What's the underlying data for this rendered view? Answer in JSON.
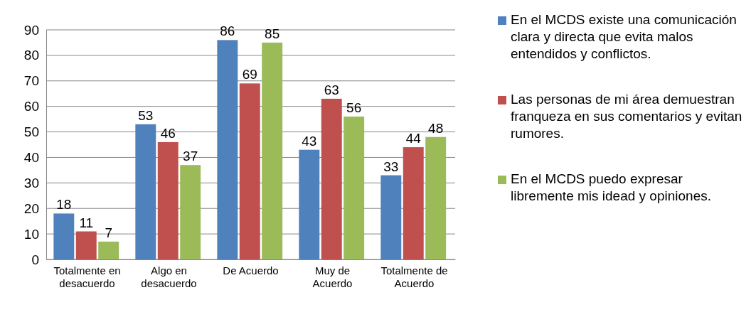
{
  "chart_data": {
    "type": "bar",
    "categories": [
      "Totalmente en desacuerdo",
      "Algo en desacuerdo",
      "De Acuerdo",
      "Muy de Acuerdo",
      "Totalmente de Acuerdo"
    ],
    "series": [
      {
        "name": "En el MCDS existe una comunicación clara y directa que evita malos entendidos y conflictos.",
        "color": "#4f81bd",
        "values": [
          18,
          53,
          86,
          43,
          33
        ]
      },
      {
        "name": "Las personas de mi área demuestran franqueza en sus comentarios y evitan rumores.",
        "color": "#c0504d",
        "values": [
          11,
          46,
          69,
          63,
          44
        ]
      },
      {
        "name": "En el MCDS puedo expresar libremente mis idead y opiniones.",
        "color": "#9bbb59",
        "values": [
          7,
          37,
          85,
          56,
          48
        ]
      }
    ],
    "ylim": [
      0,
      90
    ],
    "yticks": [
      0,
      10,
      20,
      30,
      40,
      50,
      60,
      70,
      80,
      90
    ],
    "grid": "y",
    "legend": "right",
    "data_labels": true
  }
}
